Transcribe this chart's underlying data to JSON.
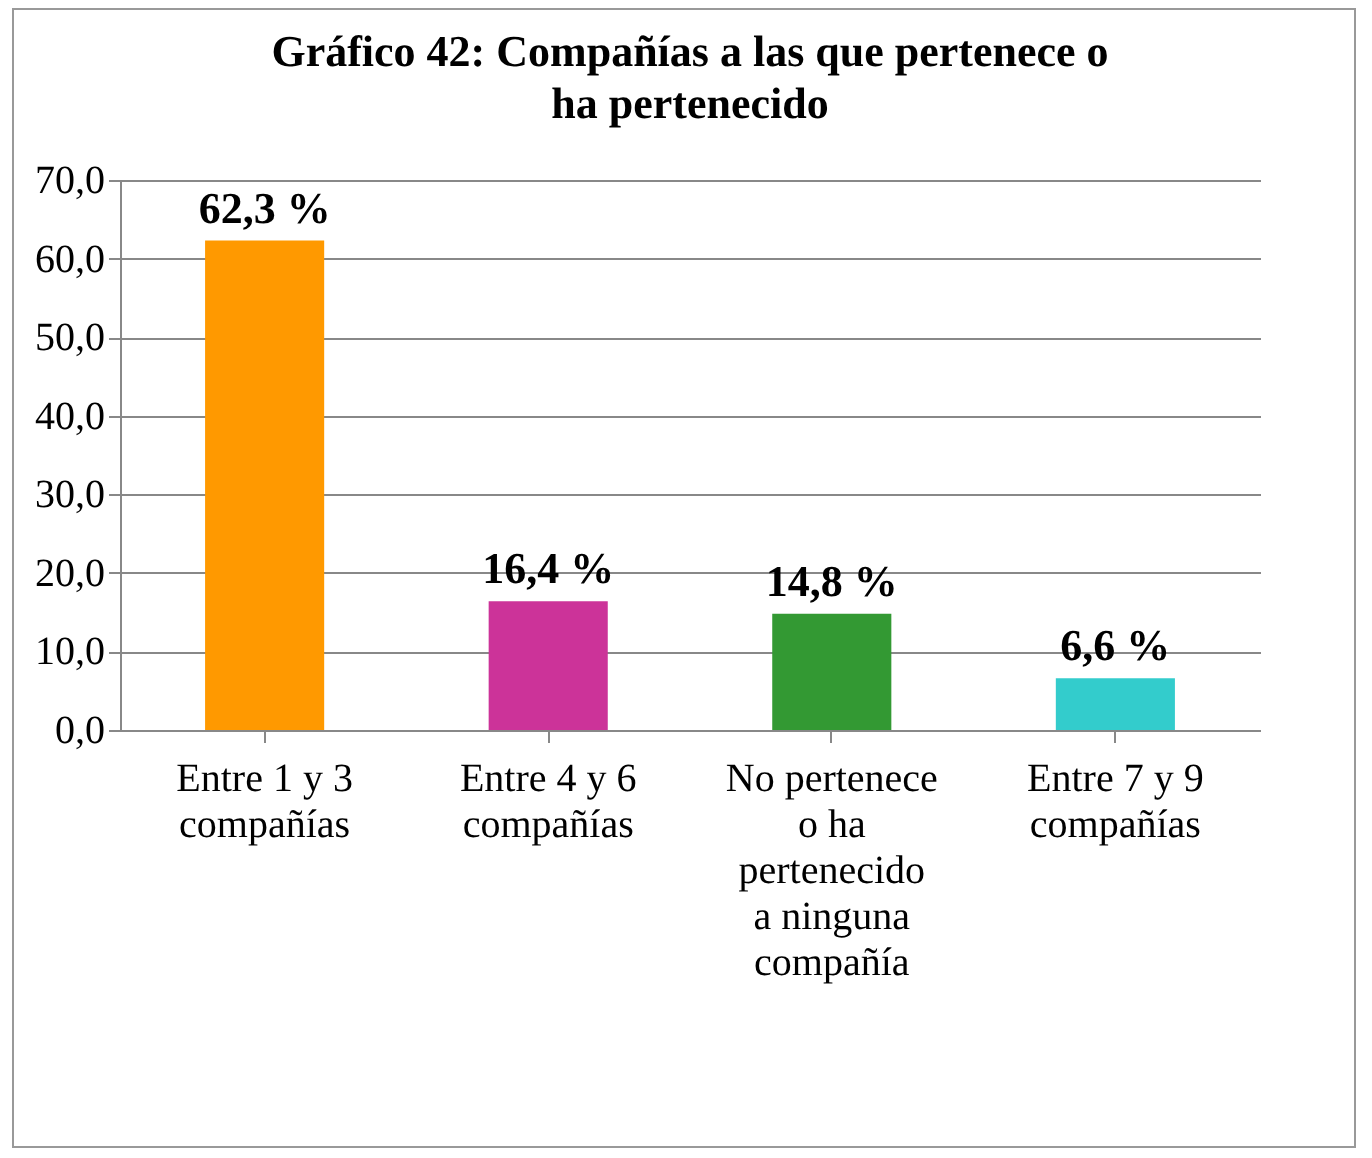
{
  "chart_data": {
    "type": "bar",
    "title": "Gráfico 42: Compañías a las que pertenece o ha pertenecido",
    "categories": [
      "Entre 1 y 3 compañías",
      "Entre 4 y 6 compañías",
      "No pertenece o ha pertenecido a ninguna compañía",
      "Entre 7 y 9 compañías"
    ],
    "values": [
      62.3,
      16.4,
      14.8,
      6.6
    ],
    "colors": [
      "#ff9900",
      "#cc3399",
      "#339933",
      "#33cccc"
    ],
    "value_labels": [
      "62,3 %",
      "16,4 %",
      "14,8 %",
      "6,6 %"
    ],
    "ylim": [
      0,
      70
    ],
    "yticks": [
      {
        "value": 0,
        "label": "0,0"
      },
      {
        "value": 10,
        "label": "10,0"
      },
      {
        "value": 20,
        "label": "20,0"
      },
      {
        "value": 30,
        "label": "30,0"
      },
      {
        "value": 40,
        "label": "40,0"
      },
      {
        "value": 50,
        "label": "50,0"
      },
      {
        "value": 60,
        "label": "60,0"
      },
      {
        "value": 70,
        "label": "70,0"
      }
    ],
    "grid": "y"
  }
}
